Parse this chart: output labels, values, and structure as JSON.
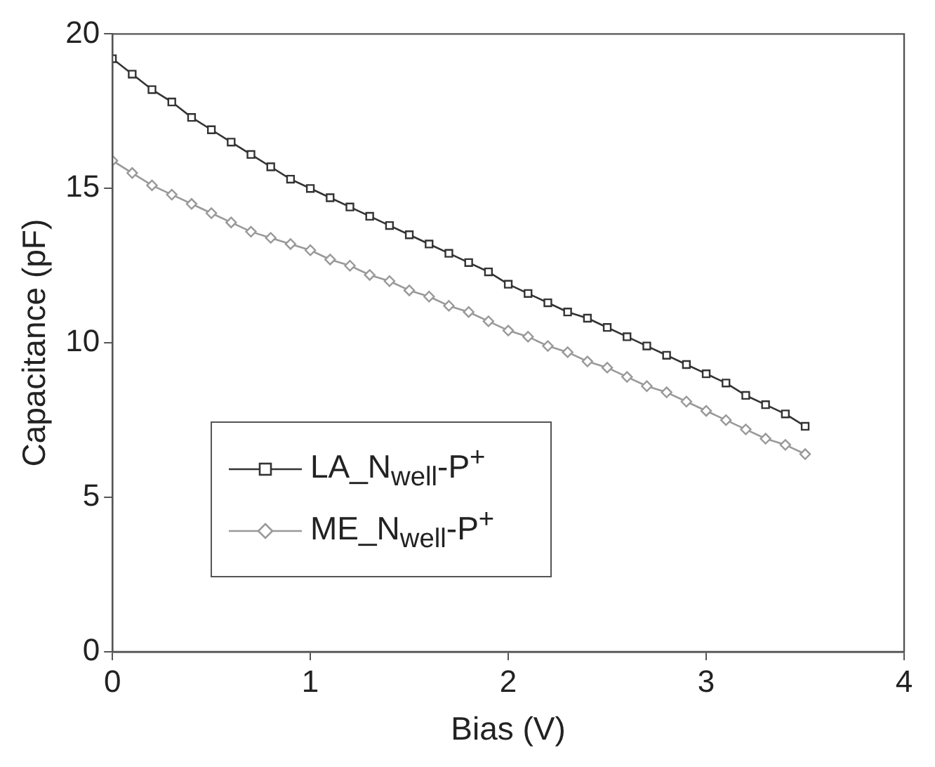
{
  "chart_data": {
    "type": "line",
    "xlabel": "Bias (V)",
    "ylabel": "Capacitance (pF)",
    "x": [
      0,
      0.1,
      0.2,
      0.3,
      0.4,
      0.5,
      0.6,
      0.7,
      0.8,
      0.9,
      1.0,
      1.1,
      1.2,
      1.3,
      1.4,
      1.5,
      1.6,
      1.7,
      1.8,
      1.9,
      2.0,
      2.1,
      2.2,
      2.3,
      2.4,
      2.5,
      2.6,
      2.7,
      2.8,
      2.9,
      3.0,
      3.1,
      3.2,
      3.3,
      3.4,
      3.5
    ],
    "series": [
      {
        "name": "LA_N$_{well}$-P$^{+}$",
        "color": "#333333",
        "marker": "square",
        "values": [
          19.2,
          18.7,
          18.2,
          17.8,
          17.3,
          16.9,
          16.5,
          16.1,
          15.7,
          15.3,
          15.0,
          14.7,
          14.4,
          14.1,
          13.8,
          13.5,
          13.2,
          12.9,
          12.6,
          12.3,
          11.9,
          11.6,
          11.3,
          11.0,
          10.8,
          10.5,
          10.2,
          9.9,
          9.6,
          9.3,
          9.0,
          8.7,
          8.3,
          8.0,
          7.7,
          7.3
        ]
      },
      {
        "name": "ME_N$_{well}$-P$^{+}$",
        "color": "#999999",
        "marker": "diamond",
        "values": [
          15.9,
          15.5,
          15.1,
          14.8,
          14.5,
          14.2,
          13.9,
          13.6,
          13.4,
          13.2,
          13.0,
          12.7,
          12.5,
          12.2,
          12.0,
          11.7,
          11.5,
          11.2,
          11.0,
          10.7,
          10.4,
          10.2,
          9.9,
          9.7,
          9.4,
          9.2,
          8.9,
          8.6,
          8.4,
          8.1,
          7.8,
          7.5,
          7.2,
          6.9,
          6.7,
          6.4
        ]
      }
    ],
    "xlim": [
      0,
      4
    ],
    "xticks": [
      0,
      1,
      2,
      3,
      4
    ],
    "ylim": [
      0,
      20
    ],
    "yticks": [
      0,
      5,
      10,
      15,
      20
    ],
    "grid": false,
    "legend": "left",
    "line_style": "solid"
  }
}
